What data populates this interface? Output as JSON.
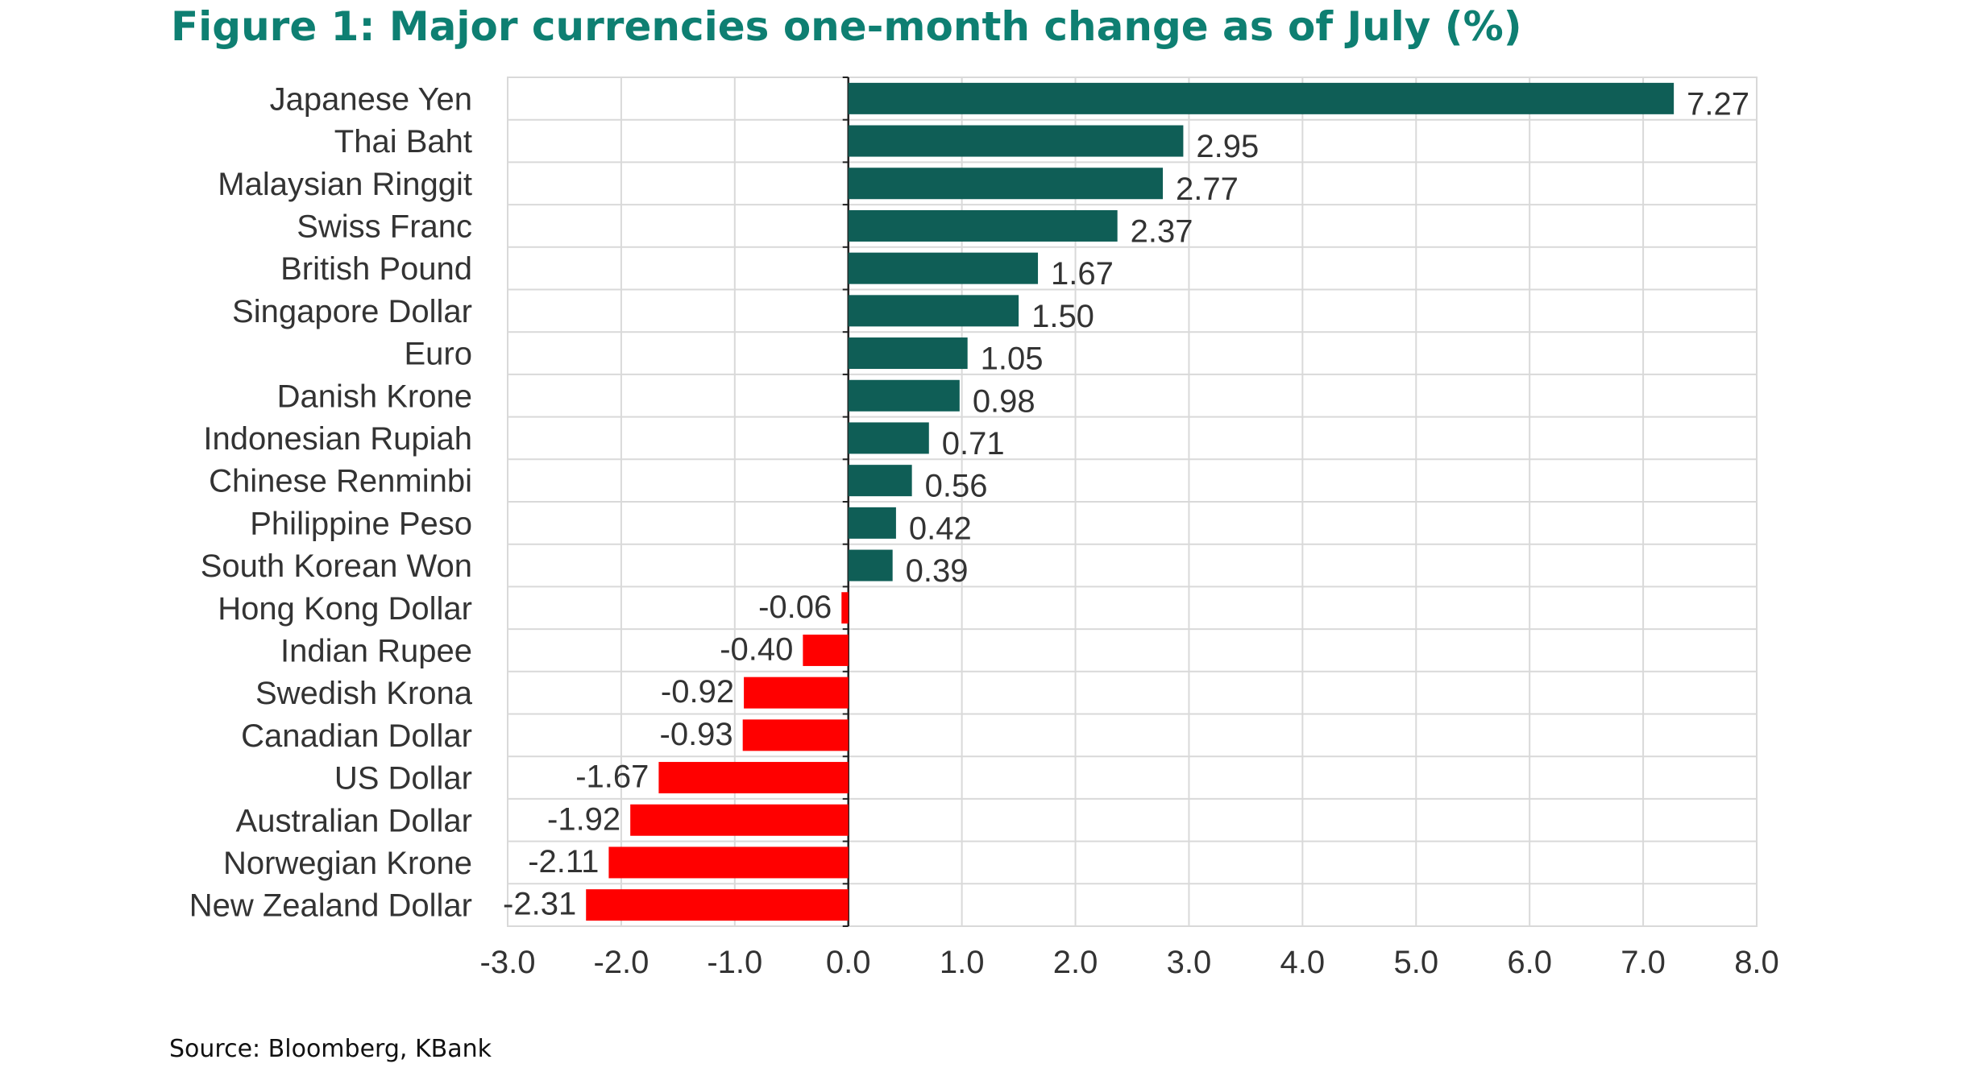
{
  "colors": {
    "title": "#0e7f72",
    "positive": "#0f5e56",
    "negative": "#ff0000"
  },
  "chart_data": {
    "type": "bar",
    "orientation": "horizontal",
    "title": "Figure 1: Major currencies one-month change as of July (%)",
    "source": "Source: Bloomberg, KBank",
    "xlabel": "",
    "ylabel": "",
    "xlim": [
      -3.0,
      8.0
    ],
    "xticks": [
      "-3.0",
      "-2.0",
      "-1.0",
      "0.0",
      "1.0",
      "2.0",
      "3.0",
      "4.0",
      "5.0",
      "6.0",
      "7.0",
      "8.0"
    ],
    "grid": true,
    "legend": "none",
    "categories": [
      "Japanese Yen",
      "Thai Baht",
      "Malaysian Ringgit",
      "Swiss Franc",
      "British Pound",
      "Singapore Dollar",
      "Euro",
      "Danish Krone",
      "Indonesian Rupiah",
      "Chinese Renminbi",
      "Philippine Peso",
      "South Korean Won",
      "Hong Kong Dollar",
      "Indian Rupee",
      "Swedish Krona",
      "Canadian Dollar",
      "US Dollar",
      "Australian Dollar",
      "Norwegian Krone",
      "New Zealand Dollar"
    ],
    "values": [
      7.27,
      2.95,
      2.77,
      2.37,
      1.67,
      1.5,
      1.05,
      0.98,
      0.71,
      0.56,
      0.42,
      0.39,
      -0.06,
      -0.4,
      -0.92,
      -0.93,
      -1.67,
      -1.92,
      -2.11,
      -2.31
    ],
    "value_labels": [
      "7.27",
      "2.95",
      "2.77",
      "2.37",
      "1.67",
      "1.50",
      "1.05",
      "0.98",
      "0.71",
      "0.56",
      "0.42",
      "0.39",
      "-0.06",
      "-0.40",
      "-0.92",
      "-0.93",
      "-1.67",
      "-1.92",
      "-2.11",
      "-2.31"
    ]
  }
}
